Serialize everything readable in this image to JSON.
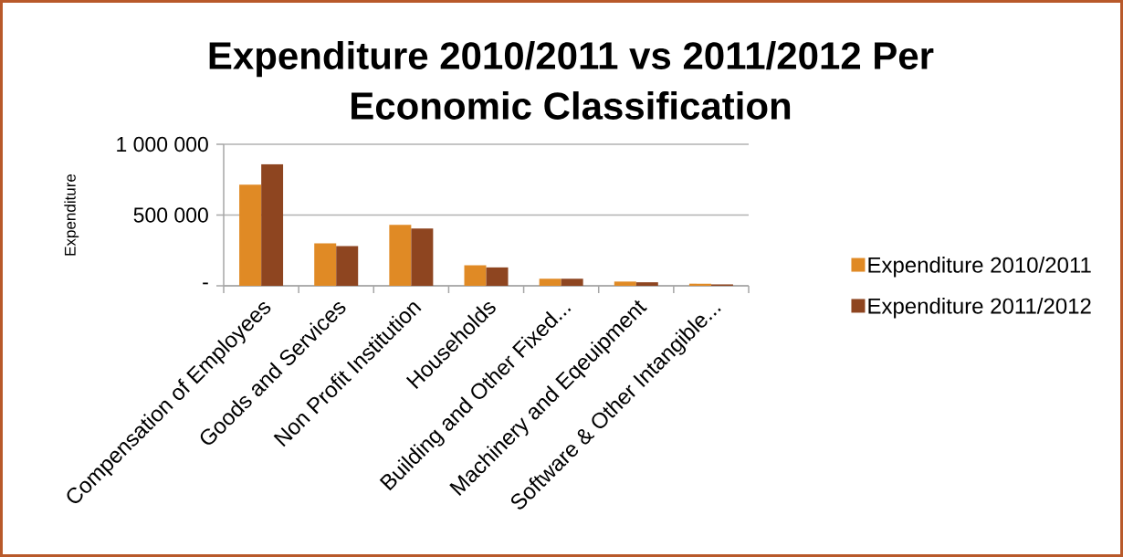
{
  "chart_data": {
    "type": "bar",
    "title": "Expenditure 2010/2011 vs 2011/2012 Per Economic Classification",
    "ylabel": "Expenditure",
    "categories": [
      "Compensation of Employees",
      "Goods and Services",
      "Non Profit Institution",
      "Households",
      "Building and Other Fixed...",
      "Machinery and Eqeuipment",
      "Software & Other Intangible..."
    ],
    "series": [
      {
        "name": "Expenditure 2010/2011",
        "color": "#e08a25",
        "values": [
          715000,
          300000,
          430000,
          145000,
          50000,
          30000,
          15000
        ]
      },
      {
        "name": "Expenditure 2011/2012",
        "color": "#8e4520",
        "values": [
          860000,
          280000,
          405000,
          130000,
          50000,
          25000,
          10000
        ]
      }
    ],
    "ylim": [
      0,
      1000000
    ],
    "yticks": [
      {
        "value": 0,
        "label": "-"
      },
      {
        "value": 500000,
        "label": "500 000"
      },
      {
        "value": 1000000,
        "label": "1 000 000"
      }
    ],
    "grid": "y",
    "legend": "right"
  }
}
